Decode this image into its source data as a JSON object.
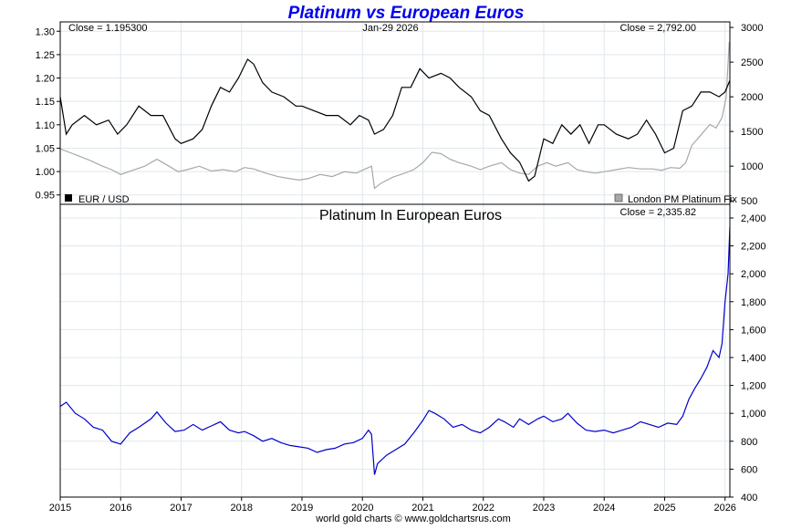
{
  "chart_data": [
    {
      "type": "line",
      "title": "Platinum vs European Euros",
      "date_label": "Jan-29  2026",
      "left_close": "Close = 1.195300",
      "right_close": "Close = 2,792.00",
      "x": [
        "2015",
        "2016",
        "2017",
        "2018",
        "2019",
        "2020",
        "2021",
        "2022",
        "2023",
        "2024",
        "2025",
        "2026"
      ],
      "y_left_ticks": [
        "0.95",
        "1.00",
        "1.05",
        "1.10",
        "1.15",
        "1.20",
        "1.25",
        "1.30"
      ],
      "y_left_lim": [
        0.93,
        1.32
      ],
      "y_right_ticks": [
        "500",
        "1000",
        "1500",
        "2000",
        "2500",
        "3000"
      ],
      "y_right_lim": [
        500,
        3000
      ],
      "series": [
        {
          "name": "EUR / USD",
          "axis": "left",
          "color": "#000000",
          "points": [
            [
              2015.0,
              1.16
            ],
            [
              2015.1,
              1.08
            ],
            [
              2015.2,
              1.1
            ],
            [
              2015.4,
              1.12
            ],
            [
              2015.6,
              1.1
            ],
            [
              2015.8,
              1.11
            ],
            [
              2015.95,
              1.08
            ],
            [
              2016.1,
              1.1
            ],
            [
              2016.3,
              1.14
            ],
            [
              2016.5,
              1.12
            ],
            [
              2016.7,
              1.12
            ],
            [
              2016.9,
              1.07
            ],
            [
              2017.0,
              1.06
            ],
            [
              2017.2,
              1.07
            ],
            [
              2017.35,
              1.09
            ],
            [
              2017.5,
              1.14
            ],
            [
              2017.65,
              1.18
            ],
            [
              2017.8,
              1.17
            ],
            [
              2017.95,
              1.2
            ],
            [
              2018.1,
              1.24
            ],
            [
              2018.2,
              1.23
            ],
            [
              2018.35,
              1.19
            ],
            [
              2018.5,
              1.17
            ],
            [
              2018.7,
              1.16
            ],
            [
              2018.9,
              1.14
            ],
            [
              2019.0,
              1.14
            ],
            [
              2019.2,
              1.13
            ],
            [
              2019.4,
              1.12
            ],
            [
              2019.6,
              1.12
            ],
            [
              2019.8,
              1.1
            ],
            [
              2019.95,
              1.12
            ],
            [
              2020.1,
              1.11
            ],
            [
              2020.2,
              1.08
            ],
            [
              2020.35,
              1.09
            ],
            [
              2020.5,
              1.12
            ],
            [
              2020.65,
              1.18
            ],
            [
              2020.8,
              1.18
            ],
            [
              2020.95,
              1.22
            ],
            [
              2021.1,
              1.2
            ],
            [
              2021.3,
              1.21
            ],
            [
              2021.45,
              1.2
            ],
            [
              2021.6,
              1.18
            ],
            [
              2021.8,
              1.16
            ],
            [
              2021.95,
              1.13
            ],
            [
              2022.1,
              1.12
            ],
            [
              2022.3,
              1.07
            ],
            [
              2022.45,
              1.04
            ],
            [
              2022.6,
              1.02
            ],
            [
              2022.75,
              0.98
            ],
            [
              2022.85,
              0.99
            ],
            [
              2023.0,
              1.07
            ],
            [
              2023.15,
              1.06
            ],
            [
              2023.3,
              1.1
            ],
            [
              2023.45,
              1.08
            ],
            [
              2023.6,
              1.1
            ],
            [
              2023.75,
              1.06
            ],
            [
              2023.9,
              1.1
            ],
            [
              2024.0,
              1.1
            ],
            [
              2024.2,
              1.08
            ],
            [
              2024.4,
              1.07
            ],
            [
              2024.55,
              1.08
            ],
            [
              2024.7,
              1.11
            ],
            [
              2024.85,
              1.08
            ],
            [
              2025.0,
              1.04
            ],
            [
              2025.15,
              1.05
            ],
            [
              2025.3,
              1.13
            ],
            [
              2025.45,
              1.14
            ],
            [
              2025.6,
              1.17
            ],
            [
              2025.75,
              1.17
            ],
            [
              2025.9,
              1.16
            ],
            [
              2026.0,
              1.17
            ],
            [
              2026.08,
              1.195
            ]
          ]
        },
        {
          "name": "London PM Platinum Fix",
          "axis": "right",
          "color": "#a8a8a8",
          "points": [
            [
              2015.0,
              1250
            ],
            [
              2015.15,
              1200
            ],
            [
              2015.3,
              1150
            ],
            [
              2015.5,
              1080
            ],
            [
              2015.7,
              1000
            ],
            [
              2015.85,
              950
            ],
            [
              2016.0,
              880
            ],
            [
              2016.2,
              940
            ],
            [
              2016.4,
              1000
            ],
            [
              2016.6,
              1100
            ],
            [
              2016.8,
              1000
            ],
            [
              2016.95,
              920
            ],
            [
              2017.1,
              950
            ],
            [
              2017.3,
              1000
            ],
            [
              2017.5,
              930
            ],
            [
              2017.7,
              950
            ],
            [
              2017.9,
              920
            ],
            [
              2018.05,
              980
            ],
            [
              2018.2,
              960
            ],
            [
              2018.4,
              900
            ],
            [
              2018.6,
              850
            ],
            [
              2018.8,
              820
            ],
            [
              2018.95,
              800
            ],
            [
              2019.1,
              820
            ],
            [
              2019.3,
              880
            ],
            [
              2019.5,
              850
            ],
            [
              2019.7,
              920
            ],
            [
              2019.9,
              900
            ],
            [
              2020.05,
              960
            ],
            [
              2020.15,
              1000
            ],
            [
              2020.2,
              680
            ],
            [
              2020.3,
              750
            ],
            [
              2020.5,
              840
            ],
            [
              2020.7,
              900
            ],
            [
              2020.85,
              950
            ],
            [
              2021.0,
              1050
            ],
            [
              2021.15,
              1200
            ],
            [
              2021.3,
              1180
            ],
            [
              2021.45,
              1100
            ],
            [
              2021.6,
              1050
            ],
            [
              2021.8,
              1000
            ],
            [
              2021.95,
              950
            ],
            [
              2022.1,
              1000
            ],
            [
              2022.3,
              1050
            ],
            [
              2022.45,
              950
            ],
            [
              2022.6,
              900
            ],
            [
              2022.75,
              880
            ],
            [
              2022.9,
              1000
            ],
            [
              2023.05,
              1050
            ],
            [
              2023.2,
              1000
            ],
            [
              2023.4,
              1050
            ],
            [
              2023.55,
              950
            ],
            [
              2023.7,
              920
            ],
            [
              2023.85,
              900
            ],
            [
              2024.0,
              920
            ],
            [
              2024.2,
              950
            ],
            [
              2024.4,
              980
            ],
            [
              2024.6,
              960
            ],
            [
              2024.8,
              960
            ],
            [
              2024.95,
              940
            ],
            [
              2025.1,
              980
            ],
            [
              2025.25,
              970
            ],
            [
              2025.35,
              1050
            ],
            [
              2025.45,
              1300
            ],
            [
              2025.55,
              1400
            ],
            [
              2025.65,
              1500
            ],
            [
              2025.75,
              1600
            ],
            [
              2025.85,
              1550
            ],
            [
              2025.95,
              1700
            ],
            [
              2026.02,
              2000
            ],
            [
              2026.07,
              2792
            ]
          ]
        }
      ],
      "legend": [
        "EUR / USD",
        "London PM Platinum Fix"
      ],
      "legend_placement": "bottom-left and bottom-right",
      "grid": true
    },
    {
      "type": "line",
      "title": "Platinum In European Euros",
      "close_label": "Close = 2,335.82",
      "x": [
        "2015",
        "2016",
        "2017",
        "2018",
        "2019",
        "2020",
        "2021",
        "2022",
        "2023",
        "2024",
        "2025",
        "2026"
      ],
      "y_right_ticks": [
        "400",
        "600",
        "800",
        "1,000",
        "1,200",
        "1,400",
        "1,600",
        "1,800",
        "2,000",
        "2,200",
        "2,400"
      ],
      "ylim": [
        400,
        2400
      ],
      "series": [
        {
          "name": "Platinum In European Euros",
          "color": "#0000cc",
          "points": [
            [
              2015.0,
              1050
            ],
            [
              2015.1,
              1080
            ],
            [
              2015.25,
              1000
            ],
            [
              2015.4,
              960
            ],
            [
              2015.55,
              900
            ],
            [
              2015.7,
              880
            ],
            [
              2015.85,
              800
            ],
            [
              2016.0,
              780
            ],
            [
              2016.15,
              860
            ],
            [
              2016.3,
              900
            ],
            [
              2016.5,
              960
            ],
            [
              2016.6,
              1010
            ],
            [
              2016.75,
              930
            ],
            [
              2016.9,
              870
            ],
            [
              2017.05,
              880
            ],
            [
              2017.2,
              920
            ],
            [
              2017.35,
              880
            ],
            [
              2017.5,
              910
            ],
            [
              2017.65,
              940
            ],
            [
              2017.8,
              880
            ],
            [
              2017.95,
              860
            ],
            [
              2018.05,
              870
            ],
            [
              2018.2,
              840
            ],
            [
              2018.35,
              800
            ],
            [
              2018.5,
              820
            ],
            [
              2018.65,
              790
            ],
            [
              2018.8,
              770
            ],
            [
              2018.95,
              760
            ],
            [
              2019.1,
              750
            ],
            [
              2019.25,
              720
            ],
            [
              2019.4,
              740
            ],
            [
              2019.55,
              750
            ],
            [
              2019.7,
              780
            ],
            [
              2019.85,
              790
            ],
            [
              2020.0,
              820
            ],
            [
              2020.1,
              880
            ],
            [
              2020.15,
              850
            ],
            [
              2020.2,
              560
            ],
            [
              2020.25,
              640
            ],
            [
              2020.4,
              700
            ],
            [
              2020.55,
              740
            ],
            [
              2020.7,
              780
            ],
            [
              2020.85,
              860
            ],
            [
              2021.0,
              950
            ],
            [
              2021.1,
              1020
            ],
            [
              2021.2,
              1000
            ],
            [
              2021.35,
              960
            ],
            [
              2021.5,
              900
            ],
            [
              2021.65,
              920
            ],
            [
              2021.8,
              880
            ],
            [
              2021.95,
              860
            ],
            [
              2022.1,
              900
            ],
            [
              2022.25,
              960
            ],
            [
              2022.35,
              940
            ],
            [
              2022.5,
              900
            ],
            [
              2022.6,
              960
            ],
            [
              2022.75,
              920
            ],
            [
              2022.9,
              960
            ],
            [
              2023.0,
              980
            ],
            [
              2023.15,
              940
            ],
            [
              2023.3,
              960
            ],
            [
              2023.4,
              1000
            ],
            [
              2023.55,
              930
            ],
            [
              2023.7,
              880
            ],
            [
              2023.85,
              870
            ],
            [
              2024.0,
              880
            ],
            [
              2024.15,
              860
            ],
            [
              2024.3,
              880
            ],
            [
              2024.45,
              900
            ],
            [
              2024.6,
              940
            ],
            [
              2024.75,
              920
            ],
            [
              2024.9,
              900
            ],
            [
              2025.05,
              930
            ],
            [
              2025.2,
              920
            ],
            [
              2025.3,
              980
            ],
            [
              2025.4,
              1100
            ],
            [
              2025.5,
              1180
            ],
            [
              2025.6,
              1250
            ],
            [
              2025.7,
              1330
            ],
            [
              2025.8,
              1450
            ],
            [
              2025.9,
              1400
            ],
            [
              2025.95,
              1500
            ],
            [
              2026.0,
              1800
            ],
            [
              2026.05,
              2000
            ],
            [
              2026.08,
              2336
            ]
          ]
        }
      ],
      "grid": true
    }
  ],
  "footer": "world gold charts © www.goldchartsrus.com"
}
